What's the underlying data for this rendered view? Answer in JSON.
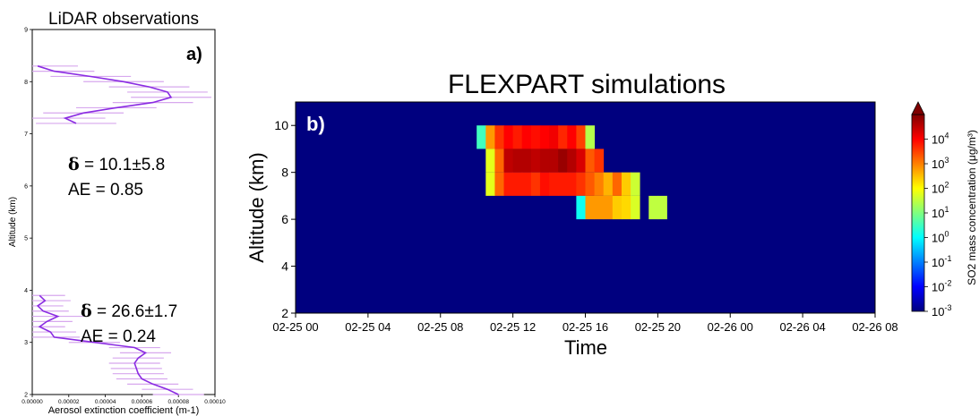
{
  "panel_a": {
    "title": "LiDAR observations",
    "label": "a)",
    "ylabel": "Altitude (km)",
    "xlabel": "Aerosol extinction coefficient (m-1)",
    "annotations": [
      {
        "delta_symbol": "δ",
        "delta_text": " = 10.1±5.8",
        "ae_text": "AE = 0.85"
      },
      {
        "delta_symbol": "δ",
        "delta_text": " = 26.6±1.7",
        "ae_text": "AE = 0.24"
      }
    ]
  },
  "panel_b": {
    "title": "FLEXPART simulations",
    "label": "b)",
    "ylabel": "Altitude (km)",
    "xlabel": "Time",
    "colorbar_label": "SO2 mass concentration (μg/m³)"
  },
  "colors": {
    "profile_line": "#8a2be2",
    "error_bars": "#d7a8ee",
    "background_field": "#00007f",
    "panel_label_text": "#ffffff"
  },
  "chart_data": [
    {
      "type": "line",
      "title": "LiDAR observations",
      "xlabel": "Aerosol extinction coefficient (m-1)",
      "ylabel": "Altitude (km)",
      "xlim": [
        0,
        0.0001
      ],
      "ylim": [
        2,
        9
      ],
      "x_ticks": [
        "0.00000",
        "0.00002",
        "0.00004",
        "0.00006",
        "0.00008",
        "0.00010"
      ],
      "y_ticks": [
        "2",
        "3",
        "4",
        "5",
        "6",
        "7",
        "8",
        "9"
      ],
      "series": [
        {
          "points": [
            {
              "y": 8.3,
              "x": 3e-06
            },
            {
              "y": 8.2,
              "x": 1.2e-05
            },
            {
              "y": 8.1,
              "x": 3.2e-05
            },
            {
              "y": 8.0,
              "x": 5e-05
            },
            {
              "y": 7.9,
              "x": 6.4e-05
            },
            {
              "y": 7.8,
              "x": 7.4e-05
            },
            {
              "y": 7.7,
              "x": 7.6e-05
            },
            {
              "y": 7.6,
              "x": 6.6e-05
            },
            {
              "y": 7.5,
              "x": 4.6e-05
            },
            {
              "y": 7.4,
              "x": 2.8e-05
            },
            {
              "y": 7.3,
              "x": 1.8e-05
            },
            {
              "y": 7.2,
              "x": 2.4e-05
            }
          ],
          "xerr": 2.2e-05
        },
        {
          "points": [
            {
              "y": 3.9,
              "x": 4e-06
            },
            {
              "y": 3.8,
              "x": 7e-06
            },
            {
              "y": 3.7,
              "x": 3e-06
            },
            {
              "y": 3.6,
              "x": 6e-06
            },
            {
              "y": 3.5,
              "x": 1.4e-05
            },
            {
              "y": 3.4,
              "x": 8e-06
            },
            {
              "y": 3.3,
              "x": 4e-06
            },
            {
              "y": 3.2,
              "x": 1e-05
            },
            {
              "y": 3.1,
              "x": 1.2e-05
            },
            {
              "y": 3.0,
              "x": 3.4e-05
            },
            {
              "y": 2.9,
              "x": 5.6e-05
            },
            {
              "y": 2.8,
              "x": 6.2e-05
            },
            {
              "y": 2.7,
              "x": 5.8e-05
            },
            {
              "y": 2.6,
              "x": 5.6e-05
            },
            {
              "y": 2.5,
              "x": 5.7e-05
            },
            {
              "y": 2.4,
              "x": 5.8e-05
            },
            {
              "y": 2.3,
              "x": 6e-05
            },
            {
              "y": 2.2,
              "x": 6.6e-05
            },
            {
              "y": 2.1,
              "x": 7.4e-05
            },
            {
              "y": 2.0,
              "x": 8e-05
            }
          ],
          "xerr": 1.4e-05
        }
      ]
    },
    {
      "type": "heatmap",
      "title": "FLEXPART simulations",
      "xlabel": "Time",
      "ylabel": "Altitude (km)",
      "colorbar_label": "SO2 mass concentration (μg/m³)",
      "scale": "log",
      "clim": [
        0.001,
        100000
      ],
      "background_value": 0,
      "x_ticks": [
        "02-25 00",
        "02-25 04",
        "02-25 08",
        "02-25 12",
        "02-25 16",
        "02-25 20",
        "02-26 00",
        "02-26 04",
        "02-26 08"
      ],
      "y_ticks": [
        "2",
        "4",
        "6",
        "8",
        "10"
      ],
      "colorbar_ticks": [
        "10^4",
        "10^3",
        "10^2",
        "10^1",
        "10^0",
        "10^-1",
        "10^-2",
        "10^-3"
      ],
      "xlim_hours": [
        0,
        32
      ],
      "ylim": [
        2,
        11
      ],
      "cell_hours": 0.5,
      "cell_km": 1,
      "rows": [
        {
          "alt_bottom": 9,
          "start_hour": 10.0,
          "log_values": [
            0.5,
            2.8,
            3.6,
            4.0,
            3.8,
            4.0,
            3.9,
            4.0,
            4.1,
            3.7,
            4.0,
            3.5,
            1.4
          ]
        },
        {
          "alt_bottom": 8,
          "start_hour": 10.5,
          "log_values": [
            1.8,
            3.2,
            4.5,
            4.6,
            4.6,
            4.5,
            4.6,
            4.6,
            4.8,
            4.6,
            4.3,
            3.3,
            3.6
          ]
        },
        {
          "alt_bottom": 7,
          "start_hour": 10.5,
          "log_values": [
            1.8,
            3.2,
            3.8,
            3.8,
            3.8,
            3.6,
            3.9,
            3.8,
            3.8,
            3.8,
            3.6,
            3.3,
            3.0,
            2.6,
            3.2,
            2.4,
            1.6
          ]
        },
        {
          "alt_bottom": 6,
          "start_hour": 15.5,
          "log_values": [
            0.1,
            2.8,
            2.8,
            2.8,
            2.4,
            2.3,
            1.7
          ]
        },
        {
          "alt_bottom": 6,
          "start_hour": 19.5,
          "log_values": [
            1.5,
            1.5
          ]
        }
      ]
    }
  ]
}
